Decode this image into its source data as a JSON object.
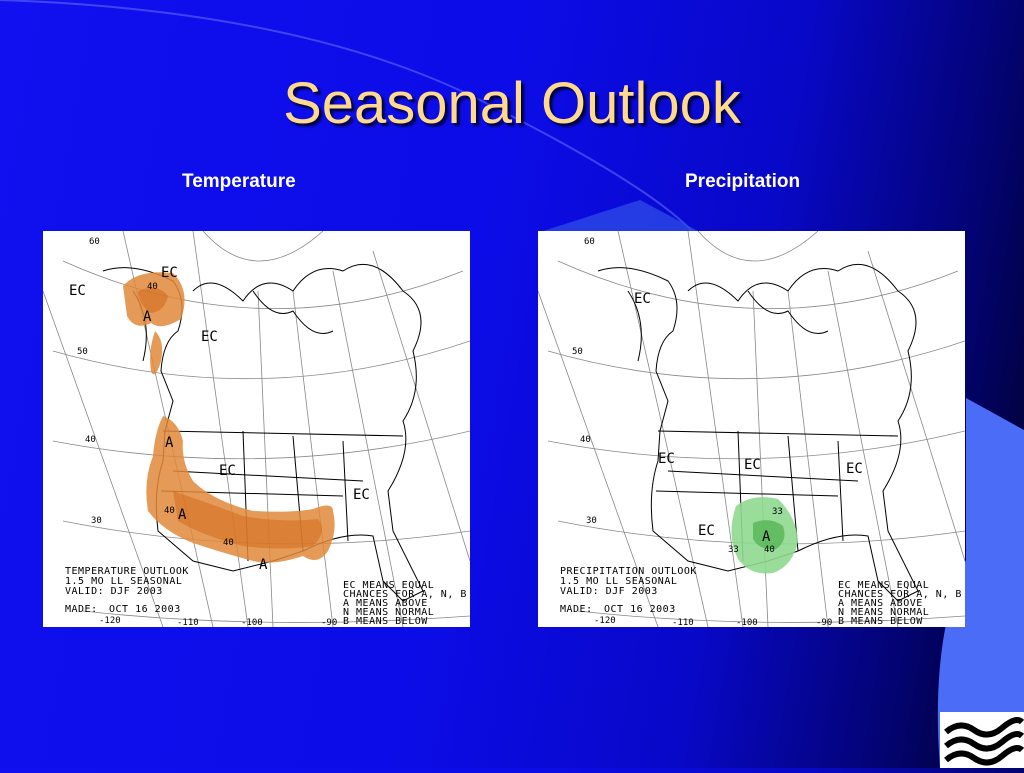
{
  "slide": {
    "title": "Seasonal Outlook"
  },
  "colors": {
    "background": "#0c0ce8",
    "title": "#ffd98c",
    "above_normal_temp": "#e08a3a",
    "above_normal_temp_dark": "#d2691e",
    "above_normal_precip": "#8fd88f",
    "above_normal_precip_dark": "#4cb04c"
  },
  "temperature_map": {
    "caption": "Temperature",
    "legend_lines": [
      "TEMPERATURE OUTLOOK",
      "1.5 MO LL SEASONAL",
      "VALID: DJF 2003"
    ],
    "made_label": "MADE:",
    "made_date": "OCT 16 2003",
    "key_lines": [
      "EC MEANS EQUAL",
      "CHANCES FOR A, N, B",
      "A MEANS ABOVE",
      "N MEANS NORMAL",
      "B MEANS BELOW"
    ],
    "lat_labels": [
      "60",
      "50",
      "40",
      "30"
    ],
    "lon_labels": [
      "-120",
      "-110",
      "-100",
      "-90"
    ],
    "ec_labels": [
      "EC",
      "EC",
      "EC",
      "EC",
      "EC"
    ],
    "a_labels": [
      "A",
      "A",
      "A",
      "A"
    ],
    "contour_labels": [
      "40",
      "40",
      "40"
    ]
  },
  "precipitation_map": {
    "caption": "Precipitation",
    "legend_lines": [
      "PRECIPITATION OUTLOOK",
      "1.5 MO LL SEASONAL",
      "VALID: DJF 2003"
    ],
    "made_label": "MADE:",
    "made_date": "OCT 16 2003",
    "key_lines": [
      "EC MEANS EQUAL",
      "CHANCES FOR A, N, B",
      "A MEANS ABOVE",
      "N MEANS NORMAL",
      "B MEANS BELOW"
    ],
    "lat_labels": [
      "60",
      "50",
      "40",
      "30"
    ],
    "lon_labels": [
      "-120",
      "-110",
      "-100",
      "-90"
    ],
    "ec_labels": [
      "EC",
      "EC",
      "EC",
      "EC",
      "EC"
    ],
    "a_labels": [
      "A"
    ],
    "contour_labels": [
      "33",
      "33",
      "40"
    ]
  },
  "icons": {
    "logo": "wave-logo-icon"
  }
}
